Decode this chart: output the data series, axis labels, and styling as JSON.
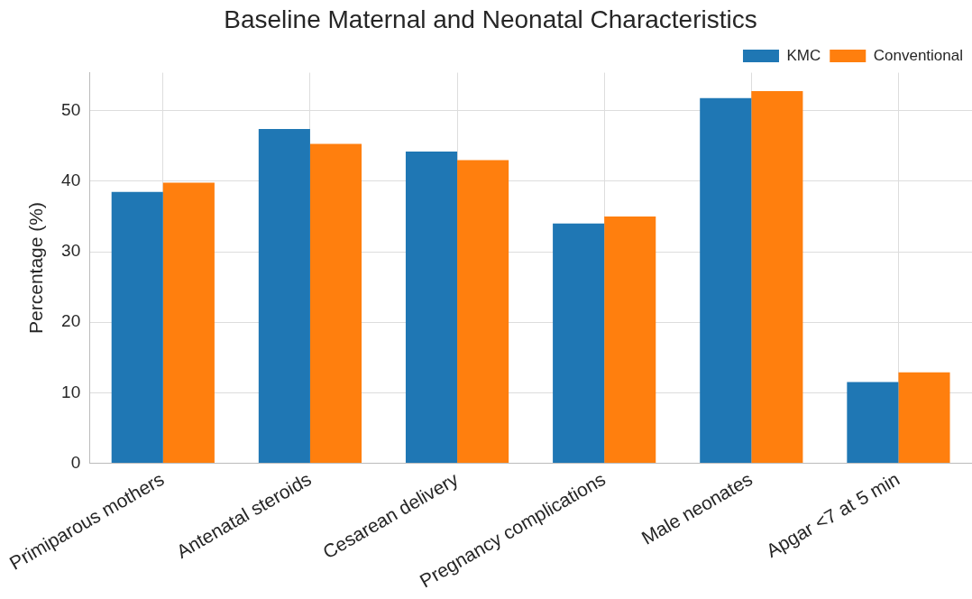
{
  "chart_data": {
    "type": "bar",
    "title": "Baseline Maternal and Neonatal Characteristics",
    "ylabel": "Percentage (%)",
    "categories": [
      "Primiparous mothers",
      "Antenatal steroids",
      "Cesarean delivery",
      "Pregnancy complications",
      "Male neonates",
      "Apgar <7 at 5 min"
    ],
    "series": [
      {
        "name": "KMC",
        "color": "#1f77b4",
        "values": [
          38.5,
          47.4,
          44.2,
          34.0,
          51.8,
          11.5
        ]
      },
      {
        "name": "Conventional",
        "color": "#ff7f0e",
        "values": [
          39.8,
          45.3,
          43.0,
          35.0,
          52.8,
          12.9
        ]
      }
    ],
    "ylim": [
      0,
      55.4
    ],
    "yticks": [
      0,
      10,
      20,
      30,
      40,
      50
    ],
    "grid": true,
    "legend": "top right"
  }
}
